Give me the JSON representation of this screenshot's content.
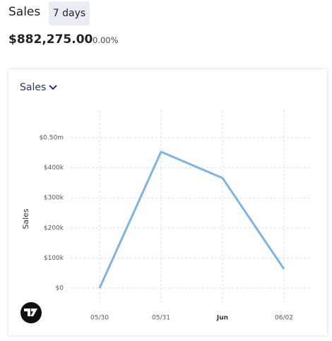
{
  "header": {
    "title": "Sales",
    "period": "7 days"
  },
  "summary": {
    "total": "$882,275.00",
    "change": "0.00%"
  },
  "dropdown": {
    "label": "Sales"
  },
  "chart_data": {
    "type": "line",
    "y_label": "Sales",
    "categories": [
      "05/30",
      "05/31",
      "Jun",
      "06/02"
    ],
    "series": [
      {
        "name": "Sales",
        "color": "#7eb3e6",
        "values": [
          0,
          453000,
          366000,
          63275
        ]
      }
    ],
    "ylim": [
      0,
      500000
    ],
    "yticks": [
      {
        "value": 0,
        "label": "$0"
      },
      {
        "value": 100000,
        "label": "$100k"
      },
      {
        "value": 200000,
        "label": "$200k"
      },
      {
        "value": 300000,
        "label": "$300k"
      },
      {
        "value": 400000,
        "label": "$400k"
      },
      {
        "value": 500000,
        "label": "$0.50m"
      }
    ],
    "grid": true
  }
}
